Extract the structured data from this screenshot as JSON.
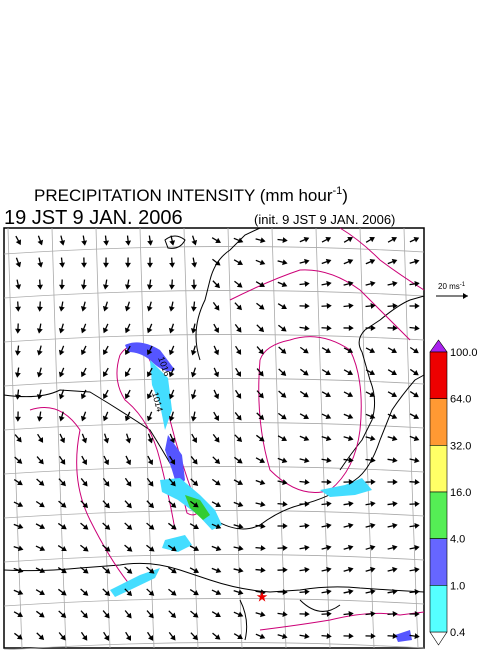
{
  "header": {
    "title": {
      "text": "PRECIPITATION INTENSITY (mm hour",
      "exponent": "-1",
      "close": ")"
    },
    "valid_time": "19 JST 9 JAN. 2006",
    "init_time": "(init. 9 JST 9 JAN. 2006)"
  },
  "wind_scale": {
    "text": "20 ms",
    "exponent": "-1"
  },
  "contour_labels": [
    "1016",
    "1014"
  ],
  "colorbar": {
    "levels": [
      "100.0",
      "64.0",
      "32.0",
      "16.0",
      "4.0",
      "1.0",
      "0.4"
    ]
  }
}
